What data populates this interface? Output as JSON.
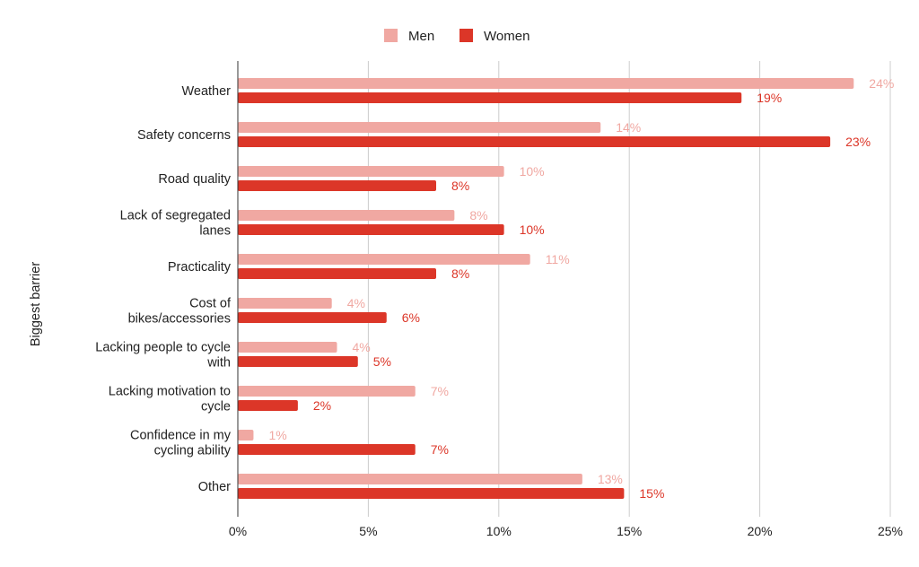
{
  "chart_data": {
    "type": "bar",
    "orientation": "horizontal",
    "title": "",
    "xlabel": "",
    "ylabel": "Biggest barrier",
    "xlim": [
      0,
      25
    ],
    "x_ticks": [
      "0%",
      "5%",
      "10%",
      "15%",
      "20%",
      "25%"
    ],
    "x_tick_values": [
      0,
      5,
      10,
      15,
      20,
      25
    ],
    "grid": "vertical",
    "legend_position": "top",
    "categories": [
      [
        "Weather"
      ],
      [
        "Safety concerns"
      ],
      [
        "Road quality"
      ],
      [
        "Lack of segregated",
        "lanes"
      ],
      [
        "Practicality"
      ],
      [
        "Cost of",
        "bikes/accessories"
      ],
      [
        "Lacking people to cycle",
        "with"
      ],
      [
        "Lacking motivation to",
        "cycle"
      ],
      [
        "Confidence in my",
        "cycling ability"
      ],
      [
        "Other"
      ]
    ],
    "series": [
      {
        "name": "Men",
        "color": "#f0a8a2",
        "values": [
          23.6,
          13.9,
          10.2,
          8.3,
          11.2,
          3.6,
          3.8,
          6.8,
          0.6,
          13.2
        ],
        "labels": [
          "24%",
          "14%",
          "10%",
          "8%",
          "11%",
          "4%",
          "4%",
          "7%",
          "1%",
          "13%"
        ]
      },
      {
        "name": "Women",
        "color": "#dc3628",
        "values": [
          19.3,
          22.7,
          7.6,
          10.2,
          7.6,
          5.7,
          4.6,
          2.3,
          6.8,
          14.8
        ],
        "labels": [
          "19%",
          "23%",
          "8%",
          "10%",
          "8%",
          "6%",
          "5%",
          "2%",
          "7%",
          "15%"
        ]
      }
    ]
  }
}
